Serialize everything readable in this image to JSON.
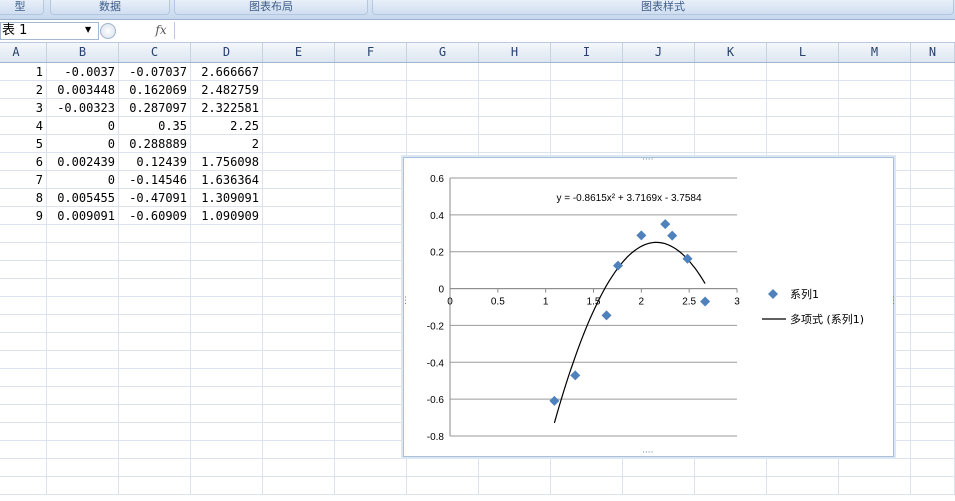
{
  "ribbon": {
    "groups": [
      "型",
      "数据",
      "图表布局",
      "图表样式"
    ]
  },
  "formula_bar": {
    "name_box": "表 1",
    "fx_icon": "fx",
    "formula": ""
  },
  "columns": [
    "A",
    "B",
    "C",
    "D",
    "E",
    "F",
    "G",
    "H",
    "I",
    "J",
    "K",
    "L",
    "M",
    "N"
  ],
  "rows": [
    [
      "1",
      "-0.0037",
      "-0.07037",
      "2.666667"
    ],
    [
      "2",
      "0.003448",
      "0.162069",
      "2.482759"
    ],
    [
      "3",
      "-0.00323",
      "0.287097",
      "2.322581"
    ],
    [
      "4",
      "0",
      "0.35",
      "2.25"
    ],
    [
      "5",
      "0",
      "0.288889",
      "2"
    ],
    [
      "6",
      "0.002439",
      "0.12439",
      "1.756098"
    ],
    [
      "7",
      "0",
      "-0.14546",
      "1.636364"
    ],
    [
      "8",
      "0.005455",
      "-0.47091",
      "1.309091"
    ],
    [
      "9",
      "0.009091",
      "-0.60909",
      "1.090909"
    ]
  ],
  "colors": {
    "marker": "#4f81bd",
    "trend": "#000000",
    "gridline": "#9a9a9a"
  },
  "chart_data": {
    "type": "scatter",
    "equation": "y = -0.8615x² + 3.7169x - 3.7584",
    "series": [
      {
        "name": "系列1",
        "x": [
          2.666667,
          2.482759,
          2.322581,
          2.25,
          2,
          1.756098,
          1.636364,
          1.309091,
          1.090909
        ],
        "y": [
          -0.07037,
          0.162069,
          0.287097,
          0.35,
          0.288889,
          0.12439,
          -0.14546,
          -0.47091,
          -0.60909
        ]
      }
    ],
    "trendline": {
      "name": "多项式 (系列1)",
      "coefficients": [
        -0.8615,
        3.7169,
        -3.7584
      ],
      "x_range": [
        1.090909,
        2.666667
      ]
    },
    "xlim": [
      0,
      3
    ],
    "ylim": [
      -0.8,
      0.6
    ],
    "x_ticks": [
      "0",
      "0.5",
      "1",
      "1.5",
      "2",
      "2.5",
      "3"
    ],
    "y_ticks": [
      "0.6",
      "0.4",
      "0.2",
      "0",
      "-0.2",
      "-0.4",
      "-0.6",
      "-0.8"
    ],
    "grid": "horizontal",
    "legend": "right"
  }
}
